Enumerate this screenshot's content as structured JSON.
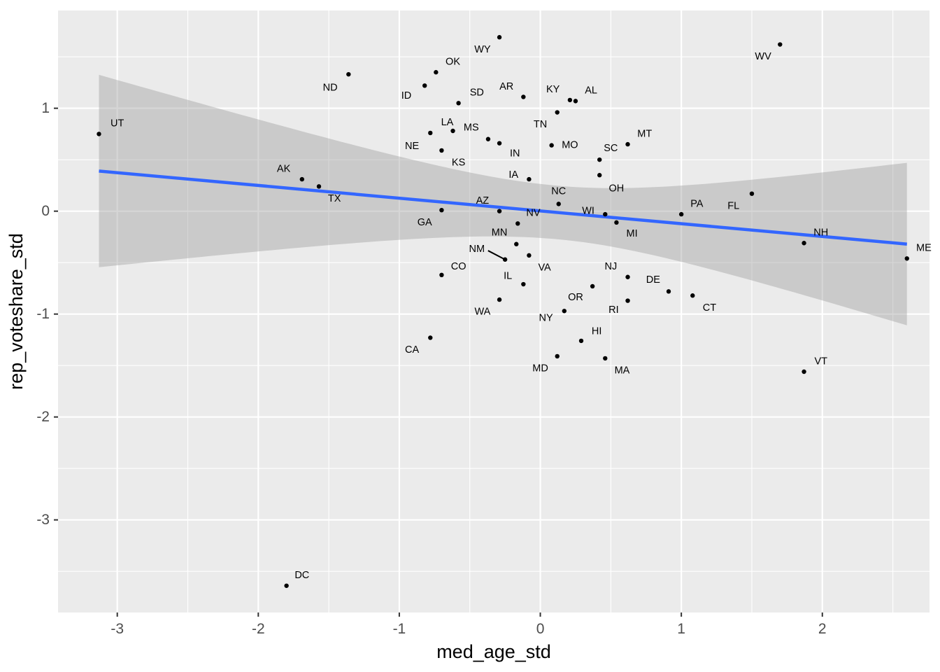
{
  "chart_data": {
    "type": "scatter",
    "xlabel": "med_age_std",
    "ylabel": "rep_voteshare_std",
    "xlim": [
      -3.42,
      2.76
    ],
    "ylim": [
      -3.9,
      1.95
    ],
    "x_ticks": [
      -3,
      -2,
      -1,
      0,
      1,
      2
    ],
    "y_ticks": [
      -3,
      -2,
      -1,
      0,
      1
    ],
    "grid": true,
    "point_color": "#000000",
    "regression": {
      "method": "linear",
      "color": "#3366FF",
      "ribbon_color": "#999999",
      "x": [
        -3.13,
        2.6
      ],
      "y": [
        0.39,
        -0.32
      ],
      "ci_lower": [
        -0.54,
        -0.25,
        -0.27,
        -1.11
      ],
      "ci_upper": [
        1.33,
        0.27,
        0.25,
        0.47
      ],
      "ci_x": [
        -3.13,
        0.05,
        0.2,
        2.6
      ]
    },
    "points": [
      {
        "label": "UT",
        "x": -3.13,
        "y": 0.75,
        "lx": -3.0,
        "ly": 0.85
      },
      {
        "label": "ND",
        "x": -1.36,
        "y": 1.33,
        "lx": -1.49,
        "ly": 1.2
      },
      {
        "label": "AK",
        "x": -1.69,
        "y": 0.31,
        "lx": -1.82,
        "ly": 0.41
      },
      {
        "label": "TX",
        "x": -1.57,
        "y": 0.24,
        "lx": -1.46,
        "ly": 0.12
      },
      {
        "label": "OK",
        "x": -0.74,
        "y": 1.35,
        "lx": -0.62,
        "ly": 1.45
      },
      {
        "label": "ID",
        "x": -0.82,
        "y": 1.22,
        "lx": -0.95,
        "ly": 1.12
      },
      {
        "label": "WY",
        "x": -0.29,
        "y": 1.69,
        "lx": -0.41,
        "ly": 1.57
      },
      {
        "label": "SD",
        "x": -0.58,
        "y": 1.05,
        "lx": -0.45,
        "ly": 1.15
      },
      {
        "label": "AR",
        "x": -0.12,
        "y": 1.11,
        "lx": -0.24,
        "ly": 1.21
      },
      {
        "label": "KY",
        "x": 0.21,
        "y": 1.08,
        "lx": 0.09,
        "ly": 1.18
      },
      {
        "label": "AL",
        "x": 0.25,
        "y": 1.07,
        "lx": 0.36,
        "ly": 1.17
      },
      {
        "label": "WV",
        "x": 1.7,
        "y": 1.62,
        "lx": 1.58,
        "ly": 1.5
      },
      {
        "label": "TN",
        "x": 0.12,
        "y": 0.96,
        "lx": 0.0,
        "ly": 0.84
      },
      {
        "label": "LA",
        "x": -0.78,
        "y": 0.76,
        "lx": -0.66,
        "ly": 0.86
      },
      {
        "label": "MS",
        "x": -0.62,
        "y": 0.78,
        "lx": -0.49,
        "ly": 0.81
      },
      {
        "label": "NE",
        "x": -0.7,
        "y": 0.59,
        "lx": -0.91,
        "ly": 0.63
      },
      {
        "label": "KS",
        "x": -0.37,
        "y": 0.7,
        "lx": -0.58,
        "ly": 0.47
      },
      {
        "label": "IN",
        "x": -0.29,
        "y": 0.66,
        "lx": -0.18,
        "ly": 0.56
      },
      {
        "label": "MO",
        "x": 0.08,
        "y": 0.64,
        "lx": 0.21,
        "ly": 0.64
      },
      {
        "label": "SC",
        "x": 0.42,
        "y": 0.5,
        "lx": 0.5,
        "ly": 0.61
      },
      {
        "label": "MT",
        "x": 0.62,
        "y": 0.65,
        "lx": 0.74,
        "ly": 0.75
      },
      {
        "label": "IA",
        "x": -0.08,
        "y": 0.31,
        "lx": -0.19,
        "ly": 0.35
      },
      {
        "label": "OH",
        "x": 0.42,
        "y": 0.35,
        "lx": 0.54,
        "ly": 0.22
      },
      {
        "label": "NC",
        "x": 0.13,
        "y": 0.07,
        "lx": 0.13,
        "ly": 0.19
      },
      {
        "label": "PA",
        "x": 1.0,
        "y": -0.03,
        "lx": 1.11,
        "ly": 0.07
      },
      {
        "label": "FL",
        "x": 1.5,
        "y": 0.17,
        "lx": 1.37,
        "ly": 0.05
      },
      {
        "label": "AZ",
        "x": -0.29,
        "y": 0.0,
        "lx": -0.41,
        "ly": 0.1
      },
      {
        "label": "GA",
        "x": -0.7,
        "y": 0.01,
        "lx": -0.82,
        "ly": -0.11
      },
      {
        "label": "NV",
        "x": -0.16,
        "y": -0.12,
        "lx": -0.05,
        "ly": -0.02
      },
      {
        "label": "WI",
        "x": 0.46,
        "y": -0.03,
        "lx": 0.34,
        "ly": 0.0
      },
      {
        "label": "MI",
        "x": 0.54,
        "y": -0.11,
        "lx": 0.65,
        "ly": -0.22
      },
      {
        "label": "NH",
        "x": 1.87,
        "y": -0.31,
        "lx": 1.99,
        "ly": -0.21
      },
      {
        "label": "ME",
        "x": 2.6,
        "y": -0.46,
        "lx": 2.72,
        "ly": -0.36
      },
      {
        "label": "MN",
        "x": -0.17,
        "y": -0.32,
        "lx": -0.29,
        "ly": -0.21
      },
      {
        "label": "NM",
        "x": -0.25,
        "y": -0.47,
        "lx": -0.45,
        "ly": -0.37
      },
      {
        "label": "VA",
        "x": -0.08,
        "y": -0.43,
        "lx": 0.03,
        "ly": -0.55
      },
      {
        "label": "CO",
        "x": -0.7,
        "y": -0.62,
        "lx": -0.58,
        "ly": -0.54
      },
      {
        "label": "IL",
        "x": -0.12,
        "y": -0.71,
        "lx": -0.23,
        "ly": -0.63
      },
      {
        "label": "NJ",
        "x": 0.62,
        "y": -0.64,
        "lx": 0.5,
        "ly": -0.54
      },
      {
        "label": "DE",
        "x": 0.91,
        "y": -0.78,
        "lx": 0.8,
        "ly": -0.67
      },
      {
        "label": "CT",
        "x": 1.08,
        "y": -0.82,
        "lx": 1.2,
        "ly": -0.94
      },
      {
        "label": "OR",
        "x": 0.37,
        "y": -0.73,
        "lx": 0.25,
        "ly": -0.84
      },
      {
        "label": "RI",
        "x": 0.62,
        "y": -0.87,
        "lx": 0.52,
        "ly": -0.96
      },
      {
        "label": "WA",
        "x": -0.29,
        "y": -0.86,
        "lx": -0.41,
        "ly": -0.98
      },
      {
        "label": "NY",
        "x": 0.17,
        "y": -0.97,
        "lx": 0.04,
        "ly": -1.04
      },
      {
        "label": "HI",
        "x": 0.29,
        "y": -1.26,
        "lx": 0.4,
        "ly": -1.17
      },
      {
        "label": "CA",
        "x": -0.78,
        "y": -1.23,
        "lx": -0.91,
        "ly": -1.35
      },
      {
        "label": "MD",
        "x": 0.12,
        "y": -1.41,
        "lx": 0.0,
        "ly": -1.53
      },
      {
        "label": "MA",
        "x": 0.46,
        "y": -1.43,
        "lx": 0.58,
        "ly": -1.55
      },
      {
        "label": "VT",
        "x": 1.87,
        "y": -1.56,
        "lx": 1.99,
        "ly": -1.46
      },
      {
        "label": "DC",
        "x": -1.8,
        "y": -3.64,
        "lx": -1.69,
        "ly": -3.54
      }
    ]
  }
}
